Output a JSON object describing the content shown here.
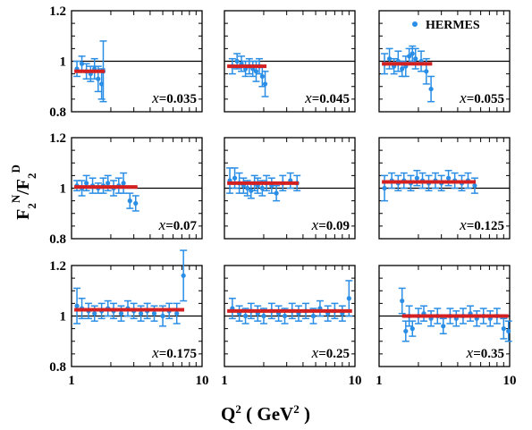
{
  "chart_data": {
    "type": "scatter",
    "xlabel": "Q",
    "xlabel_sup": "2",
    "xlabel_unit_open": " ( GeV",
    "xlabel_unit_sup": "2",
    "xlabel_unit_close": " )",
    "ylabel_main": "F",
    "ylabel_sub1": "2",
    "ylabel_sup1": "N",
    "ylabel_slash": "/F",
    "ylabel_sub2": "2",
    "ylabel_sup2": "D",
    "xscale": "log",
    "xlim": [
      1,
      10
    ],
    "ylim": [
      0.8,
      1.2
    ],
    "x_ticklabels": [
      "1",
      "10"
    ],
    "y_ticklabels": [
      "0.8",
      "1",
      "1.2"
    ],
    "legend": {
      "label": "HERMES",
      "color": "#2a8ee6",
      "position": "top-right"
    },
    "colors": {
      "data": "#2a8ee6",
      "fit": "#d42020"
    },
    "reference_line": 1.0,
    "panels": [
      {
        "x_label": "x",
        "x_value": "=0.035",
        "points": [
          [
            1.1,
            0.97,
            0.03
          ],
          [
            1.2,
            0.99,
            0.03
          ],
          [
            1.3,
            0.96,
            0.03
          ],
          [
            1.4,
            0.95,
            0.03
          ],
          [
            1.5,
            0.97,
            0.04
          ],
          [
            1.6,
            0.93,
            0.05
          ],
          [
            1.7,
            0.91,
            0.06
          ],
          [
            1.75,
            0.96,
            0.12
          ]
        ],
        "fit": [
          1.05,
          1.8,
          0.96
        ]
      },
      {
        "x_label": "x",
        "x_value": "=0.045",
        "points": [
          [
            1.15,
            0.98,
            0.03
          ],
          [
            1.25,
            1.0,
            0.03
          ],
          [
            1.35,
            0.99,
            0.03
          ],
          [
            1.45,
            0.97,
            0.03
          ],
          [
            1.55,
            0.98,
            0.03
          ],
          [
            1.65,
            0.97,
            0.03
          ],
          [
            1.75,
            0.96,
            0.04
          ],
          [
            1.85,
            0.98,
            0.03
          ],
          [
            1.95,
            0.94,
            0.04
          ],
          [
            2.05,
            0.91,
            0.05
          ]
        ],
        "fit": [
          1.05,
          2.1,
          0.98
        ]
      },
      {
        "x_label": "x",
        "x_value": "=0.055",
        "points": [
          [
            1.1,
            0.99,
            0.04
          ],
          [
            1.2,
            1.01,
            0.04
          ],
          [
            1.3,
            0.98,
            0.03
          ],
          [
            1.4,
            1.0,
            0.04
          ],
          [
            1.5,
            0.97,
            0.03
          ],
          [
            1.6,
            0.98,
            0.04
          ],
          [
            1.7,
            1.02,
            0.03
          ],
          [
            1.8,
            1.03,
            0.03
          ],
          [
            1.9,
            1.01,
            0.04
          ],
          [
            2.1,
            1.0,
            0.04
          ],
          [
            2.3,
            0.96,
            0.05
          ],
          [
            2.5,
            0.89,
            0.05
          ]
        ],
        "fit": [
          1.05,
          2.55,
          0.99
        ]
      },
      {
        "x_label": "x",
        "x_value": "=0.07",
        "points": [
          [
            1.1,
            1.01,
            0.02
          ],
          [
            1.2,
            1.0,
            0.03
          ],
          [
            1.3,
            1.02,
            0.03
          ],
          [
            1.45,
            1.01,
            0.03
          ],
          [
            1.6,
            1.0,
            0.02
          ],
          [
            1.75,
            1.01,
            0.03
          ],
          [
            1.9,
            1.02,
            0.03
          ],
          [
            2.1,
            1.0,
            0.03
          ],
          [
            2.3,
            1.01,
            0.03
          ],
          [
            2.5,
            1.02,
            0.04
          ],
          [
            2.8,
            0.95,
            0.03
          ],
          [
            3.1,
            0.94,
            0.03
          ]
        ],
        "fit": [
          1.05,
          3.2,
          1.005
        ]
      },
      {
        "x_label": "x",
        "x_value": "=0.09",
        "points": [
          [
            1.1,
            1.03,
            0.05
          ],
          [
            1.2,
            1.04,
            0.04
          ],
          [
            1.3,
            1.02,
            0.04
          ],
          [
            1.4,
            1.01,
            0.03
          ],
          [
            1.5,
            1.0,
            0.03
          ],
          [
            1.6,
            0.99,
            0.03
          ],
          [
            1.7,
            1.02,
            0.03
          ],
          [
            1.8,
            1.01,
            0.03
          ],
          [
            1.95,
            1.0,
            0.03
          ],
          [
            2.1,
            1.02,
            0.03
          ],
          [
            2.3,
            1.01,
            0.03
          ],
          [
            2.5,
            0.98,
            0.03
          ],
          [
            2.8,
            1.02,
            0.03
          ],
          [
            3.2,
            1.03,
            0.03
          ],
          [
            3.6,
            1.02,
            0.03
          ]
        ],
        "fit": [
          1.05,
          3.7,
          1.02
        ]
      },
      {
        "x_label": "x",
        "x_value": "=0.125",
        "points": [
          [
            1.1,
            1.0,
            0.05
          ],
          [
            1.25,
            1.03,
            0.03
          ],
          [
            1.4,
            1.02,
            0.03
          ],
          [
            1.55,
            1.03,
            0.03
          ],
          [
            1.75,
            1.02,
            0.03
          ],
          [
            1.95,
            1.04,
            0.03
          ],
          [
            2.15,
            1.03,
            0.03
          ],
          [
            2.4,
            1.02,
            0.03
          ],
          [
            2.7,
            1.03,
            0.03
          ],
          [
            3.0,
            1.02,
            0.03
          ],
          [
            3.4,
            1.04,
            0.03
          ],
          [
            3.8,
            1.03,
            0.03
          ],
          [
            4.3,
            1.02,
            0.03
          ],
          [
            4.8,
            1.03,
            0.03
          ],
          [
            5.4,
            1.01,
            0.03
          ]
        ],
        "fit": [
          1.05,
          5.5,
          1.025
        ]
      },
      {
        "x_label": "x",
        "x_value": "=0.175",
        "points": [
          [
            1.1,
            1.04,
            0.07
          ],
          [
            1.2,
            1.03,
            0.04
          ],
          [
            1.35,
            1.02,
            0.03
          ],
          [
            1.5,
            1.01,
            0.03
          ],
          [
            1.7,
            1.02,
            0.03
          ],
          [
            1.9,
            1.03,
            0.03
          ],
          [
            2.1,
            1.02,
            0.03
          ],
          [
            2.4,
            1.01,
            0.03
          ],
          [
            2.7,
            1.03,
            0.03
          ],
          [
            3.0,
            1.02,
            0.03
          ],
          [
            3.4,
            1.01,
            0.03
          ],
          [
            3.8,
            1.02,
            0.03
          ],
          [
            4.3,
            1.01,
            0.03
          ],
          [
            5.0,
            1.0,
            0.04
          ],
          [
            5.6,
            1.02,
            0.03
          ],
          [
            6.4,
            1.01,
            0.04
          ],
          [
            7.2,
            1.16,
            0.1
          ]
        ],
        "fit": [
          1.05,
          7.3,
          1.025
        ]
      },
      {
        "x_label": "x",
        "x_value": "=0.25",
        "points": [
          [
            1.15,
            1.03,
            0.04
          ],
          [
            1.3,
            1.01,
            0.03
          ],
          [
            1.45,
            1.0,
            0.03
          ],
          [
            1.6,
            1.02,
            0.03
          ],
          [
            1.8,
            1.01,
            0.03
          ],
          [
            2.0,
            1.0,
            0.03
          ],
          [
            2.3,
            1.02,
            0.03
          ],
          [
            2.6,
            1.01,
            0.03
          ],
          [
            2.9,
            1.0,
            0.03
          ],
          [
            3.3,
            1.02,
            0.03
          ],
          [
            3.7,
            1.01,
            0.03
          ],
          [
            4.2,
            1.02,
            0.03
          ],
          [
            4.8,
            1.0,
            0.03
          ],
          [
            5.4,
            1.03,
            0.03
          ],
          [
            6.2,
            1.01,
            0.03
          ],
          [
            7.0,
            1.02,
            0.03
          ],
          [
            8.0,
            1.01,
            0.03
          ],
          [
            9.0,
            1.07,
            0.07
          ]
        ],
        "fit": [
          1.05,
          9.5,
          1.02
        ]
      },
      {
        "x_label": "x",
        "x_value": "=0.35",
        "points": [
          [
            1.5,
            1.06,
            0.05
          ],
          [
            1.6,
            0.94,
            0.04
          ],
          [
            1.7,
            1.0,
            0.04
          ],
          [
            1.8,
            0.95,
            0.03
          ],
          [
            2.0,
            1.0,
            0.03
          ],
          [
            2.2,
            1.01,
            0.03
          ],
          [
            2.5,
            0.99,
            0.03
          ],
          [
            2.8,
            1.0,
            0.03
          ],
          [
            3.1,
            0.96,
            0.03
          ],
          [
            3.5,
            1.0,
            0.03
          ],
          [
            3.9,
            0.99,
            0.03
          ],
          [
            4.4,
            1.0,
            0.03
          ],
          [
            5.0,
            1.01,
            0.03
          ],
          [
            5.6,
            0.99,
            0.03
          ],
          [
            6.3,
            1.0,
            0.03
          ],
          [
            7.1,
            0.99,
            0.03
          ],
          [
            8.0,
            1.0,
            0.03
          ],
          [
            9.0,
            0.95,
            0.04
          ],
          [
            9.8,
            0.94,
            0.04
          ]
        ],
        "fit": [
          1.5,
          9.8,
          1.0
        ]
      }
    ]
  }
}
